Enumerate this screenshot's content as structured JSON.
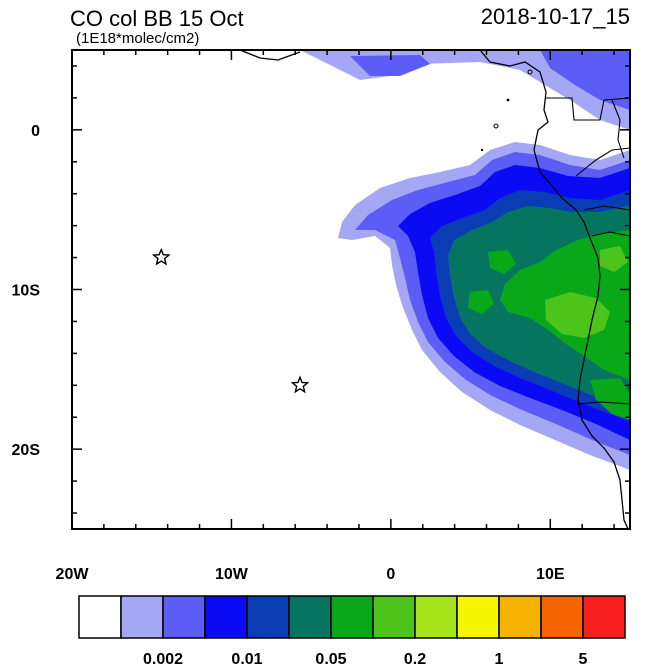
{
  "title": "CO col BB 15 Oct",
  "units": "(1E18*molec/cm2)",
  "timestamp": "2018-10-17_15",
  "map": {
    "lon_range": [
      -20,
      15
    ],
    "lat_range": [
      -25,
      5
    ],
    "x_ticks": [
      {
        "value": -20,
        "label": "20W"
      },
      {
        "value": -10,
        "label": "10W"
      },
      {
        "value": 0,
        "label": "0"
      },
      {
        "value": 10,
        "label": "10E"
      }
    ],
    "y_ticks": [
      {
        "value": 0,
        "label": "0"
      },
      {
        "value": -10,
        "label": "10S"
      },
      {
        "value": -20,
        "label": "20S"
      }
    ],
    "markers": [
      {
        "name": "star-marker-ascension",
        "lon": -14.4,
        "lat": -8.0
      },
      {
        "name": "star-marker-st-helena",
        "lon": -5.7,
        "lat": -16.0
      }
    ]
  },
  "colorbar": {
    "colors": [
      "#ffffff",
      "#a4a8f4",
      "#5c5cf6",
      "#0a0af5",
      "#0a3cb4",
      "#057560",
      "#08a818",
      "#4cc41c",
      "#a8e41c",
      "#f6f600",
      "#f6b400",
      "#f66400",
      "#f61e1e"
    ],
    "labels": [
      {
        "after_box": 2,
        "text": "0.002"
      },
      {
        "after_box": 4,
        "text": "0.01"
      },
      {
        "after_box": 6,
        "text": "0.05"
      },
      {
        "after_box": 8,
        "text": "0.2"
      },
      {
        "after_box": 10,
        "text": "1"
      },
      {
        "after_box": 12,
        "text": "5"
      }
    ]
  }
}
